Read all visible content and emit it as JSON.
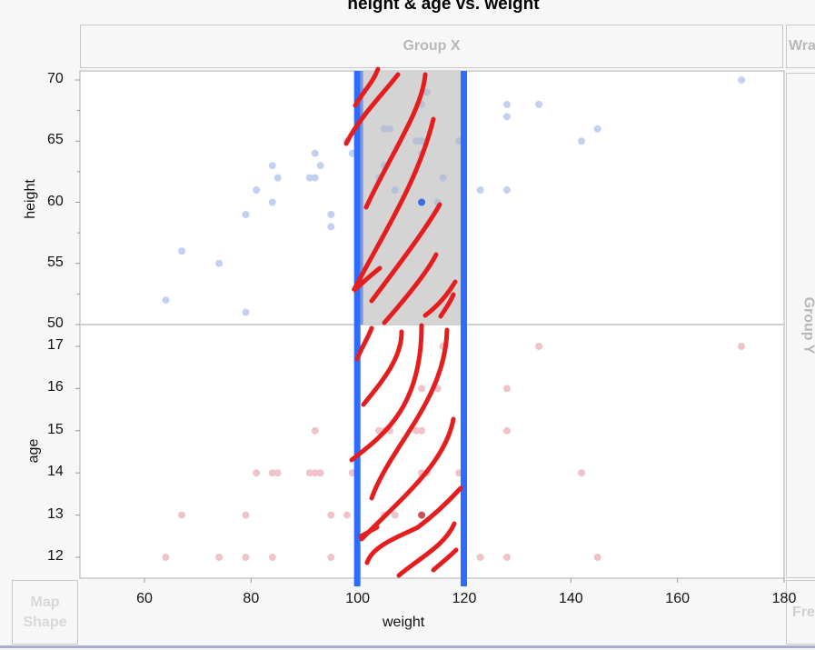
{
  "title": "height & age vs. weight",
  "zones": {
    "group_x": "Group X",
    "wrap": "Wrap",
    "group_y": "Group Y",
    "map_shape": "Map Shape",
    "freq": "Freq"
  },
  "colors": {
    "height_points": "#c2d0f2",
    "age_points": "#f0c3c8",
    "selected_height": "#3a6ee0",
    "selected_age": "#c9505f",
    "selection_lines": "#2e6bff",
    "selection_band": "#d4d4d4",
    "annotation": "#e41e1e"
  },
  "chart_data": {
    "type": "scatter",
    "title": "height & age vs. weight",
    "xlabel": "weight",
    "xlim": [
      48,
      180
    ],
    "xticks": [
      "60",
      "80",
      "100",
      "120",
      "140",
      "160",
      "180"
    ],
    "selection_range": [
      100,
      120
    ],
    "panels": [
      {
        "ylabel": "height",
        "ylim": [
          50,
          70.5
        ],
        "yticks": [
          "70",
          "65",
          "60",
          "55",
          "50"
        ],
        "field": "height"
      },
      {
        "ylabel": "age",
        "ylim": [
          11.5,
          17.5
        ],
        "yticks": [
          "17",
          "16",
          "15",
          "14",
          "13",
          "12"
        ],
        "field": "age"
      }
    ],
    "points": [
      {
        "weight": 95,
        "height": 59,
        "age": 12
      },
      {
        "weight": 123,
        "height": 61,
        "age": 12
      },
      {
        "weight": 74,
        "height": 55,
        "age": 12
      },
      {
        "weight": 145,
        "height": 66,
        "age": 12
      },
      {
        "weight": 64,
        "height": 52,
        "age": 12
      },
      {
        "weight": 84,
        "height": 60,
        "age": 12
      },
      {
        "weight": 128,
        "height": 61,
        "age": 12
      },
      {
        "weight": 79,
        "height": 51,
        "age": 12
      },
      {
        "weight": 112,
        "height": 60,
        "age": 13,
        "selected": true
      },
      {
        "weight": 107,
        "height": 61,
        "age": 13
      },
      {
        "weight": 67,
        "height": 56,
        "age": 13
      },
      {
        "weight": 98,
        "height": 65,
        "age": 13
      },
      {
        "weight": 105,
        "height": 63,
        "age": 13
      },
      {
        "weight": 95,
        "height": 58,
        "age": 13
      },
      {
        "weight": 79,
        "height": 59,
        "age": 13
      },
      {
        "weight": 81,
        "height": 61,
        "age": 14
      },
      {
        "weight": 91,
        "height": 62,
        "age": 14
      },
      {
        "weight": 142,
        "height": 65,
        "age": 14
      },
      {
        "weight": 84,
        "height": 63,
        "age": 14
      },
      {
        "weight": 85,
        "height": 62,
        "age": 14
      },
      {
        "weight": 93,
        "height": 63,
        "age": 14
      },
      {
        "weight": 99,
        "height": 64,
        "age": 14
      },
      {
        "weight": 119,
        "height": 65,
        "age": 14
      },
      {
        "weight": 92,
        "height": 64,
        "age": 14
      },
      {
        "weight": 112,
        "height": 68,
        "age": 14
      },
      {
        "weight": 99,
        "height": 64,
        "age": 14
      },
      {
        "weight": 113,
        "height": 69,
        "age": 14
      },
      {
        "weight": 92,
        "height": 62,
        "age": 15
      },
      {
        "weight": 112,
        "height": 64,
        "age": 15
      },
      {
        "weight": 128,
        "height": 67,
        "age": 15
      },
      {
        "weight": 111,
        "height": 65,
        "age": 15
      },
      {
        "weight": 105,
        "height": 66,
        "age": 15
      },
      {
        "weight": 104,
        "height": 62,
        "age": 15
      },
      {
        "weight": 106,
        "height": 66,
        "age": 15
      },
      {
        "weight": 112,
        "height": 65,
        "age": 16
      },
      {
        "weight": 115,
        "height": 60,
        "age": 16
      },
      {
        "weight": 128,
        "height": 68,
        "age": 16
      },
      {
        "weight": 116,
        "height": 62,
        "age": 17
      },
      {
        "weight": 134,
        "height": 68,
        "age": 17
      },
      {
        "weight": 172,
        "height": 70,
        "age": 17
      }
    ]
  }
}
